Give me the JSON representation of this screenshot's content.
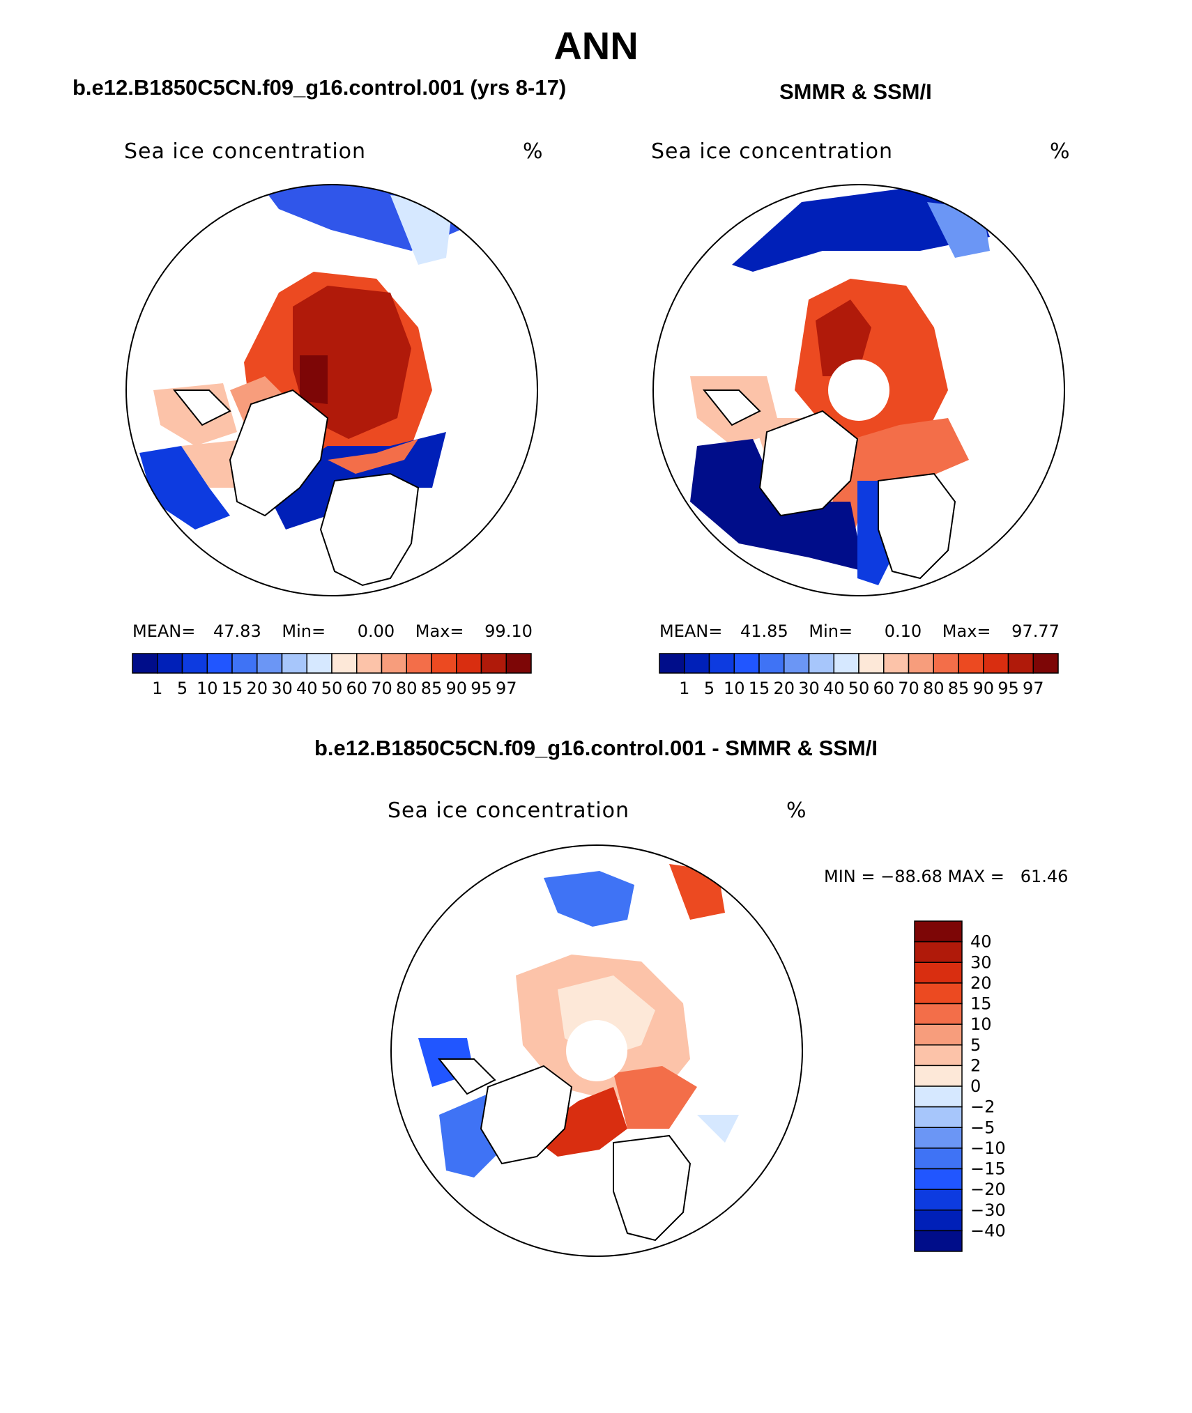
{
  "figure": {
    "season": "ANN",
    "left_title": "b.e12.B1850C5CN.f09_g16.control.001 (yrs 8-17)",
    "right_title": "SMMR & SSM/I",
    "bottom_title": "b.e12.B1850C5CN.f09_g16.control.001 - SMMR & SSM/I"
  },
  "panels": {
    "model": {
      "variable": "Sea ice concentration",
      "units": "%",
      "stats": {
        "mean_label": "MEAN=",
        "mean": "47.83",
        "min_label": "Min=",
        "min": "0.00",
        "max_label": "Max=",
        "max": "99.10"
      }
    },
    "obs": {
      "variable": "Sea ice concentration",
      "units": "%",
      "stats": {
        "mean_label": "MEAN=",
        "mean": "41.85",
        "min_label": "Min=",
        "min": "0.10",
        "max_label": "Max=",
        "max": "97.77"
      }
    },
    "diff": {
      "variable": "Sea ice concentration",
      "units": "%",
      "minmax": "MIN = −88.68 MAX =   61.46"
    }
  },
  "chart_data": [
    {
      "type": "heatmap",
      "projection": "north-polar-stereographic",
      "title": "Sea ice concentration",
      "units": "%",
      "colorbar_levels": [
        "1",
        "5",
        "10",
        "15",
        "20",
        "30",
        "40",
        "50",
        "60",
        "70",
        "80",
        "85",
        "90",
        "95",
        "97"
      ],
      "colorbar_colors": [
        "#000d8a",
        "#0020b8",
        "#0d3be0",
        "#2156ff",
        "#3f73f5",
        "#6b96f5",
        "#a7c6fb",
        "#d6e8ff",
        "#fde8d8",
        "#fcc3a9",
        "#f79d7c",
        "#f36e49",
        "#ec4a21",
        "#d92e10",
        "#b01a0a",
        "#7d0606"
      ],
      "mean": 47.83,
      "min": 0.0,
      "max": 99.1
    },
    {
      "type": "heatmap",
      "projection": "north-polar-stereographic",
      "title": "Sea ice concentration",
      "units": "%",
      "colorbar_levels": [
        "1",
        "5",
        "10",
        "15",
        "20",
        "30",
        "40",
        "50",
        "60",
        "70",
        "80",
        "85",
        "90",
        "95",
        "97"
      ],
      "colorbar_colors": [
        "#000d8a",
        "#0020b8",
        "#0d3be0",
        "#2156ff",
        "#3f73f5",
        "#6b96f5",
        "#a7c6fb",
        "#d6e8ff",
        "#fde8d8",
        "#fcc3a9",
        "#f79d7c",
        "#f36e49",
        "#ec4a21",
        "#d92e10",
        "#b01a0a",
        "#7d0606"
      ],
      "mean": 41.85,
      "min": 0.1,
      "max": 97.77
    },
    {
      "type": "heatmap",
      "projection": "north-polar-stereographic",
      "title": "Sea ice concentration",
      "units": "%",
      "colorbar_levels": [
        "40",
        "30",
        "20",
        "15",
        "10",
        "5",
        "2",
        "0",
        "−2",
        "−5",
        "−10",
        "−15",
        "−20",
        "−30",
        "−40"
      ],
      "colorbar_colors": [
        "#7d0606",
        "#b01a0a",
        "#d92e10",
        "#ec4a21",
        "#f36e49",
        "#f79d7c",
        "#fcc3a9",
        "#fde8d8",
        "#d6e8ff",
        "#a7c6fb",
        "#6b96f5",
        "#3f73f5",
        "#2156ff",
        "#0d3be0",
        "#0020b8",
        "#000d8a"
      ],
      "min": -88.68,
      "max": 61.46
    }
  ]
}
